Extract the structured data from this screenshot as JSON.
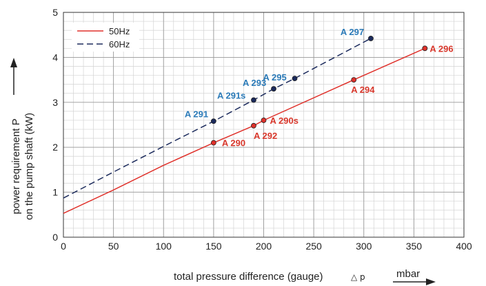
{
  "chart_data": {
    "type": "line",
    "xlabel": "total pressure difference (gauge)",
    "xlabel_symbol": "△ p",
    "xunit": "mbar",
    "ylabel_line1": "power requirement P",
    "ylabel_line2": "on the pump shaft (kW)",
    "xlim": [
      0,
      400
    ],
    "ylim": [
      0,
      5
    ],
    "xticks": [
      0,
      50,
      100,
      150,
      200,
      250,
      300,
      350,
      400
    ],
    "yticks": [
      0,
      1,
      2,
      3,
      4,
      5
    ],
    "grid": true,
    "minor_grid": true,
    "legend_position": "top-left",
    "series": [
      {
        "name": "50Hz",
        "color": "#e0312b",
        "dash": "solid",
        "x": [
          0,
          50,
          100,
          150,
          190,
          200,
          290,
          361
        ],
        "y": [
          0.53,
          1.05,
          1.6,
          2.1,
          2.48,
          2.6,
          3.5,
          4.2
        ],
        "points": [
          {
            "x": 150,
            "y": 2.1,
            "label": "A 290"
          },
          {
            "x": 190,
            "y": 2.48,
            "label": "A 292"
          },
          {
            "x": 200,
            "y": 2.6,
            "label": "A 290s"
          },
          {
            "x": 290,
            "y": 3.5,
            "label": "A 294"
          },
          {
            "x": 361,
            "y": 4.2,
            "label": "A 296"
          }
        ]
      },
      {
        "name": "60Hz",
        "color": "#1b2a5c",
        "dash": "dashed",
        "x": [
          0,
          50,
          100,
          150,
          190,
          210,
          231,
          307
        ],
        "y": [
          0.87,
          1.45,
          2.02,
          2.58,
          3.05,
          3.3,
          3.53,
          4.42
        ],
        "points": [
          {
            "x": 150,
            "y": 2.58,
            "label": "A 291"
          },
          {
            "x": 190,
            "y": 3.05,
            "label": "A 291s"
          },
          {
            "x": 210,
            "y": 3.3,
            "label": "A 293"
          },
          {
            "x": 231,
            "y": 3.53,
            "label": "A 295"
          },
          {
            "x": 307,
            "y": 4.42,
            "label": "A 297"
          }
        ]
      }
    ],
    "label_colors": {
      "50Hz": "#d8372b",
      "60Hz": "#2a7ab8"
    }
  }
}
